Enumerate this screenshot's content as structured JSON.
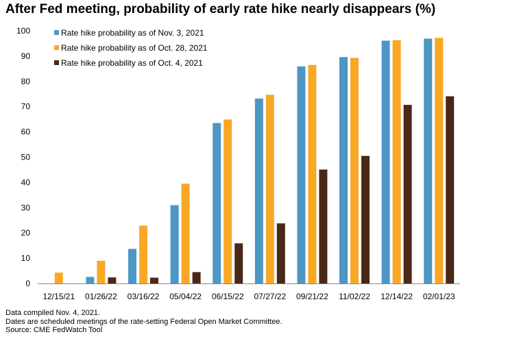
{
  "title": "After Fed meeting, probability of early rate hike nearly disappears (%)",
  "notes": [
    "Data compiled Nov. 4, 2021.",
    "Dates are scheduled meetings of the rate-setting Federal Open Market Committee.",
    "Source: CME FedWatch Tool"
  ],
  "chart_data": {
    "type": "bar",
    "title": "After Fed meeting, probability of early rate hike nearly disappears (%)",
    "categories": [
      "12/15/21",
      "01/26/22",
      "03/16/22",
      "05/04/22",
      "06/15/22",
      "07/27/22",
      "09/21/22",
      "11/02/22",
      "12/14/22",
      "02/01/23"
    ],
    "series": [
      {
        "name": "Rate hike probability as of Nov. 3, 2021",
        "color": "#4d97c4",
        "values": [
          0,
          2.6,
          13.7,
          31,
          63.5,
          73.2,
          85.9,
          89.6,
          96.1,
          96.9
        ]
      },
      {
        "name": "Rate hike probability as of Oct. 28, 2021",
        "color": "#f9a825",
        "values": [
          4.3,
          9,
          22.9,
          39.5,
          64.9,
          74.7,
          86.5,
          89.3,
          96.3,
          97.2
        ]
      },
      {
        "name": "Rate hike probability as of Oct. 4, 2021",
        "color": "#4a2817",
        "values": [
          0,
          2.4,
          2.3,
          4.5,
          15.9,
          23.8,
          45.1,
          50.5,
          70.7,
          74.1
        ]
      }
    ],
    "yticks": [
      0,
      10,
      20,
      30,
      40,
      50,
      60,
      70,
      80,
      90,
      100
    ],
    "ylim": [
      0,
      100
    ],
    "xlabel": "",
    "ylabel": "",
    "grid": false,
    "legend_position": "top-left"
  }
}
